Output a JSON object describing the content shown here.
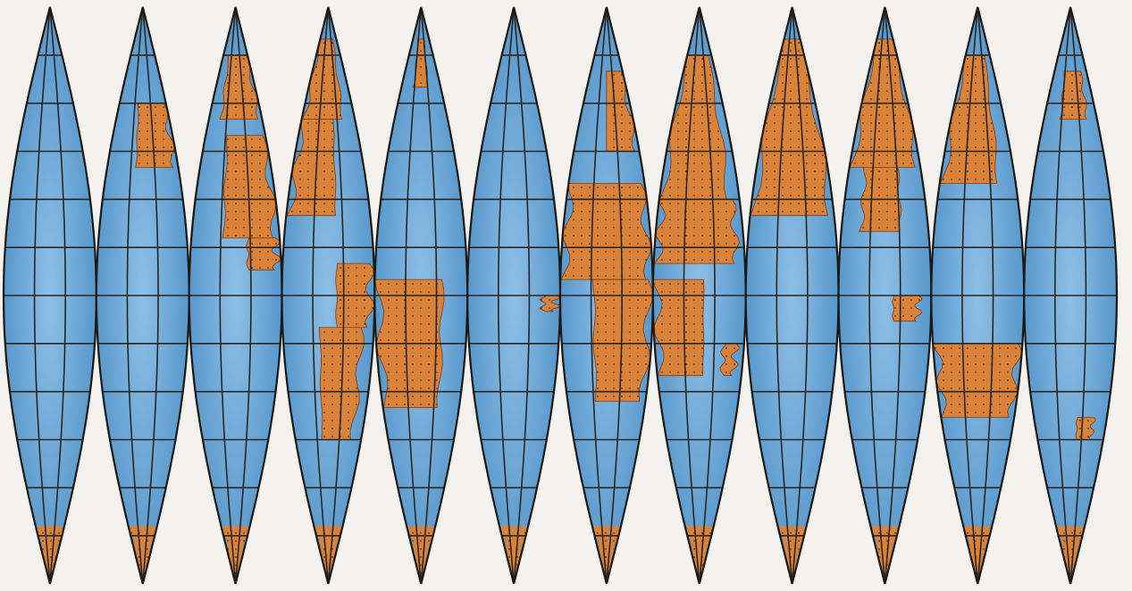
{
  "map": {
    "gore_count": 12,
    "meridians_per_gore": 3,
    "parallel_step_deg": 15,
    "colors": {
      "paper": "#f4f2ee",
      "ocean": "#5b9fd2",
      "ocean_light": "#9fcbea",
      "land": "#d9823a",
      "land_dots": "#5a2a10",
      "grid": "#2a2520",
      "outline": "#1c1814"
    }
  }
}
